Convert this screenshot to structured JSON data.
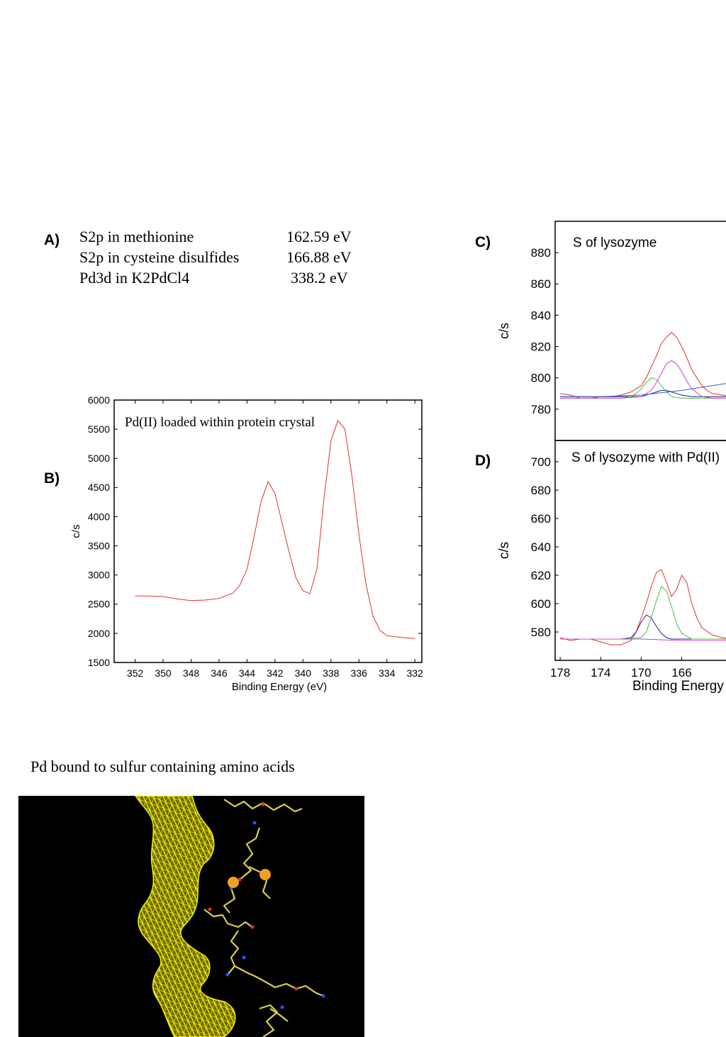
{
  "panel_labels": {
    "a": "A)",
    "b": "B)",
    "c": "C)",
    "d": "D)"
  },
  "binding_energies": [
    {
      "species": "S2p in methionine",
      "energy": "162.59 eV"
    },
    {
      "species": "S2p in cysteine disulfides",
      "energy": "166.88 eV"
    },
    {
      "species": "Pd3d in K2PdCl4",
      "energy": "338.2 eV"
    }
  ],
  "figure_caption": "Pd bound to sulfur containing amino acids",
  "colors": {
    "spectrum": "#e03030",
    "fit_magenta": "#d040d0",
    "fit_green": "#40c040",
    "fit_blue": "#3060d0",
    "fit_cyan": "#40c0c0",
    "fit_navy": "#202080",
    "mesh": "#f5f00a",
    "pd_atom": "#f0a020"
  },
  "chart_data": [
    {
      "id": "B",
      "type": "line",
      "title": "Pd(II) loaded within protein crystal",
      "xlabel": "Binding Energy (eV)",
      "ylabel": "c/s",
      "xlim": [
        353.5,
        331.5
      ],
      "ylim": [
        1500,
        6000
      ],
      "xticks": [
        352,
        350,
        348,
        346,
        344,
        342,
        340,
        338,
        336,
        334,
        332
      ],
      "yticks": [
        1500,
        2000,
        2500,
        3000,
        3500,
        4000,
        4500,
        5000,
        5500,
        6000
      ],
      "grid": false,
      "series": [
        {
          "x": [
            352.0,
            351.0,
            350.0,
            349.0,
            348.0,
            347.0,
            346.0,
            345.0,
            344.5,
            344.0,
            343.5,
            343.0,
            342.5,
            342.0,
            341.5,
            341.0,
            340.5,
            340.0,
            339.5,
            339.0,
            338.5,
            338.0,
            337.5,
            337.0,
            336.5,
            336.0,
            335.5,
            335.0,
            334.5,
            334.0,
            333.0,
            332.0
          ],
          "y": [
            2640,
            2640,
            2630,
            2590,
            2560,
            2570,
            2600,
            2690,
            2830,
            3100,
            3650,
            4250,
            4600,
            4400,
            3900,
            3400,
            2950,
            2730,
            2680,
            3100,
            4300,
            5300,
            5650,
            5500,
            4700,
            3700,
            2850,
            2300,
            2050,
            1960,
            1930,
            1910
          ]
        }
      ]
    },
    {
      "id": "C",
      "type": "line",
      "title": "S of lysozyme",
      "xlabel": "Binding Energy",
      "ylabel": "c/s",
      "xlim": [
        178.5,
        160.5
      ],
      "ylim": [
        760,
        900
      ],
      "xticks": [],
      "yticks": [
        780,
        800,
        820,
        840,
        860,
        880
      ],
      "grid": false,
      "series": [
        {
          "name": "",
          "x": [
            178.0,
            177.0,
            176.0,
            175.0,
            174.0,
            173.0,
            172.0,
            171.0,
            170.0,
            169.5,
            169.0,
            168.5,
            168.0,
            167.5,
            167.0,
            166.5,
            166.0,
            165.5,
            165.0,
            164.5,
            164.0,
            163.5,
            163.0,
            162.0,
            161.0
          ],
          "y": [
            790,
            789,
            787,
            787,
            788,
            788,
            789,
            791,
            795,
            800,
            807,
            814,
            822,
            826,
            829,
            826,
            820,
            813,
            805,
            800,
            795,
            792,
            790,
            789,
            788
          ]
        },
        {
          "name": "",
          "x": [
            178.0,
            176.0,
            174.0,
            172.0,
            170.0,
            169.0,
            168.5,
            168.0,
            167.5,
            167.0,
            166.5,
            166.0,
            165.0,
            164.0,
            163.0,
            162.0,
            161.0
          ],
          "y": [
            788,
            788,
            788,
            788,
            788,
            790,
            791,
            792,
            792,
            791,
            790,
            789,
            788,
            788,
            788,
            788,
            788
          ]
        },
        {
          "name": "",
          "x": [
            178.0,
            176.0,
            174.0,
            172.0,
            171.0,
            170.5,
            170.0,
            169.5,
            169.0,
            168.5,
            168.0,
            167.5,
            167.0,
            166.0,
            165.0,
            164.0,
            163.0,
            162.0,
            161.0
          ],
          "y": [
            787,
            787,
            787,
            787,
            788,
            790,
            793,
            797,
            800,
            799,
            795,
            791,
            788,
            787,
            787,
            787,
            787,
            787,
            787
          ]
        },
        {
          "name": "",
          "x": [
            178.0,
            176.0,
            174.0,
            172.0,
            170.0,
            169.0,
            168.5,
            168.0,
            167.5,
            167.0,
            166.5,
            166.0,
            165.5,
            165.0,
            164.0,
            163.0,
            162.0,
            161.0
          ],
          "y": [
            787,
            787,
            787,
            787,
            788,
            792,
            797,
            803,
            809,
            811,
            809,
            804,
            798,
            793,
            788,
            787,
            787,
            787
          ]
        },
        {
          "name": "",
          "x": [
            178.0,
            174.0,
            170.0,
            166.0,
            162.0,
            161.0
          ],
          "y": [
            788,
            788,
            789,
            792,
            796,
            797
          ]
        }
      ]
    },
    {
      "id": "D",
      "type": "line",
      "title": "S of lysozyme with Pd(II)",
      "xlabel": "Binding Energy",
      "ylabel": "c/s",
      "xlim": [
        178.5,
        160.5
      ],
      "ylim": [
        560,
        715
      ],
      "xticks": [
        178,
        174,
        170,
        166
      ],
      "yticks": [
        580,
        600,
        620,
        640,
        660,
        680,
        700
      ],
      "grid": false,
      "series": [
        {
          "name": "",
          "x": [
            178.0,
            177.0,
            176.0,
            175.0,
            174.0,
            173.0,
            172.0,
            171.0,
            170.5,
            170.0,
            169.5,
            169.0,
            168.5,
            168.0,
            167.5,
            167.0,
            166.5,
            166.0,
            165.5,
            165.0,
            164.5,
            164.0,
            163.0,
            162.0,
            161.0
          ],
          "y": [
            576,
            574,
            575,
            575,
            573,
            571,
            571,
            574,
            580,
            590,
            600,
            612,
            622,
            624,
            615,
            605,
            610,
            620,
            615,
            600,
            590,
            583,
            578,
            576,
            575
          ]
        },
        {
          "name": "",
          "x": [
            178.0,
            176.0,
            174.0,
            172.0,
            171.0,
            170.5,
            170.0,
            169.5,
            169.0,
            168.5,
            168.0,
            167.5,
            167.0,
            166.0,
            165.0,
            164.0,
            163.0,
            162.0,
            161.0
          ],
          "y": [
            575,
            575,
            575,
            575,
            576,
            580,
            587,
            592,
            590,
            584,
            579,
            576,
            575,
            575,
            575,
            575,
            575,
            575,
            575
          ]
        },
        {
          "name": "",
          "x": [
            178.0,
            176.0,
            174.0,
            172.0,
            170.0,
            169.5,
            169.0,
            168.5,
            168.0,
            167.5,
            167.0,
            166.5,
            166.0,
            165.0,
            164.0,
            163.0,
            162.0,
            161.0
          ],
          "y": [
            575,
            575,
            575,
            575,
            576,
            580,
            590,
            602,
            612,
            609,
            598,
            586,
            579,
            575,
            575,
            575,
            575,
            575
          ]
        },
        {
          "name": "",
          "x": [
            178.0,
            174.0,
            170.0,
            166.0,
            162.0,
            161.0
          ],
          "y": [
            575,
            575,
            575,
            574,
            574,
            574
          ]
        }
      ]
    }
  ]
}
